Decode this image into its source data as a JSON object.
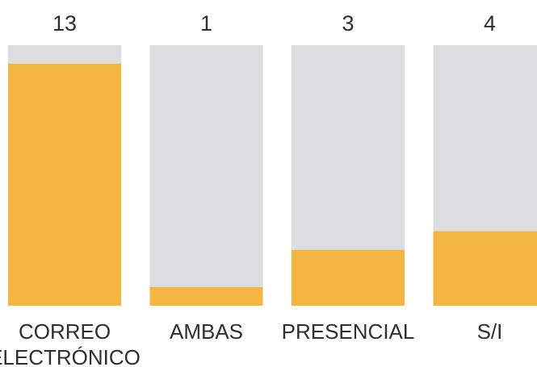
{
  "chart_data": {
    "type": "bar",
    "categories": [
      [
        "CORREO",
        "ELECTRÓNICO"
      ],
      [
        "AMBAS"
      ],
      [
        "PRESENCIAL"
      ],
      [
        "S/I"
      ]
    ],
    "values": [
      13,
      1,
      3,
      4
    ],
    "value_labels": [
      "13",
      "1",
      "3",
      "4"
    ],
    "ylim": [
      0,
      14
    ],
    "title": "",
    "xlabel": "",
    "ylabel": "",
    "grid": false,
    "colors": {
      "bar_fill": "#f4b642",
      "track": "#dcdddf",
      "text": "#2f2f2f"
    }
  }
}
